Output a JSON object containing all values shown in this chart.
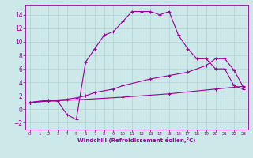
{
  "xlabel": "Windchill (Refroidissement éolien,°C)",
  "background_color": "#cce8e8",
  "grid_color": "#aacccc",
  "line_color": "#990099",
  "xlim": [
    -0.5,
    23.5
  ],
  "ylim": [
    -3,
    15.5
  ],
  "xticks": [
    0,
    1,
    2,
    3,
    4,
    5,
    6,
    7,
    8,
    9,
    10,
    11,
    12,
    13,
    14,
    15,
    16,
    17,
    18,
    19,
    20,
    21,
    22,
    23
  ],
  "yticks": [
    -2,
    0,
    2,
    4,
    6,
    8,
    10,
    12,
    14
  ],
  "series1_x": [
    0,
    1,
    2,
    3,
    4,
    5,
    6,
    7,
    8,
    9,
    10,
    11,
    12,
    13,
    14,
    15,
    16,
    17,
    18,
    19,
    20,
    21,
    22,
    23
  ],
  "series1_y": [
    1,
    1.2,
    1.3,
    1.2,
    -0.8,
    -1.5,
    7.0,
    9.0,
    11.0,
    11.5,
    13.0,
    14.5,
    14.5,
    14.5,
    14.0,
    14.5,
    11.0,
    9.0,
    7.5,
    7.5,
    6.0,
    6.0,
    3.5,
    3.0
  ],
  "series2_x": [
    0,
    2,
    4,
    5,
    6,
    7,
    9,
    10,
    13,
    15,
    17,
    19,
    20,
    21,
    22,
    23
  ],
  "series2_y": [
    1,
    1.3,
    1.5,
    1.7,
    2.0,
    2.5,
    3.0,
    3.5,
    4.5,
    5.0,
    5.5,
    6.5,
    7.5,
    7.5,
    5.8,
    3.3
  ],
  "series3_x": [
    0,
    2,
    5,
    10,
    15,
    20,
    23
  ],
  "series3_y": [
    1,
    1.2,
    1.4,
    1.8,
    2.3,
    3.0,
    3.4
  ]
}
